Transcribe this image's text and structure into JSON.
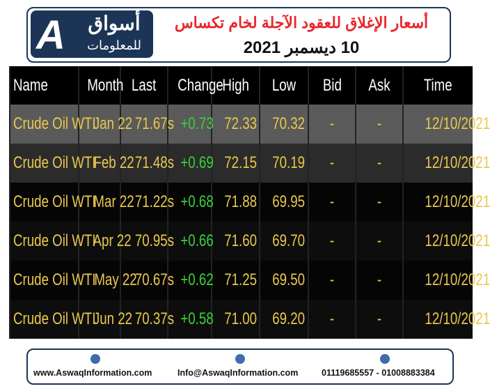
{
  "header": {
    "logo_letter": "A",
    "logo_name": "أسواق",
    "logo_sub": "للمعلومات",
    "title": "أسعار الإغلاق للعقود الآجلة لخام تكساس",
    "date": "10 ديسمبر 2021"
  },
  "table": {
    "columns": [
      "Name",
      "Month",
      "Last",
      "Change",
      "High",
      "Low",
      "Bid",
      "Ask",
      "Time"
    ],
    "rows": [
      [
        "Crude Oil WTI",
        "Jan 22",
        "71.67s",
        "+0.73",
        "72.33",
        "70.32",
        "-",
        "-",
        "12/10/2021"
      ],
      [
        "Crude Oil WTI",
        "Feb 22",
        "71.48s",
        "+0.69",
        "72.15",
        "70.19",
        "-",
        "-",
        "12/10/2021"
      ],
      [
        "Crude Oil WTI",
        "Mar 22",
        "71.22s",
        "+0.68",
        "71.88",
        "69.95",
        "-",
        "-",
        "12/10/2021"
      ],
      [
        "Crude Oil WTI",
        "Apr 22",
        "70.95s",
        "+0.66",
        "71.60",
        "69.70",
        "-",
        "-",
        "12/10/2021"
      ],
      [
        "Crude Oil WTI",
        "May 22",
        "70.67s",
        "+0.62",
        "71.25",
        "69.50",
        "-",
        "-",
        "12/10/2021"
      ],
      [
        "Crude Oil WTI",
        "Jun 22",
        "70.37s",
        "+0.58",
        "71.00",
        "69.20",
        "-",
        "-",
        "12/10/2021"
      ]
    ]
  },
  "footer": {
    "website": "www.AswaqInformation.com",
    "email": "Info@AswaqInformation.com",
    "phones": "01119685557 - 01008883384"
  }
}
